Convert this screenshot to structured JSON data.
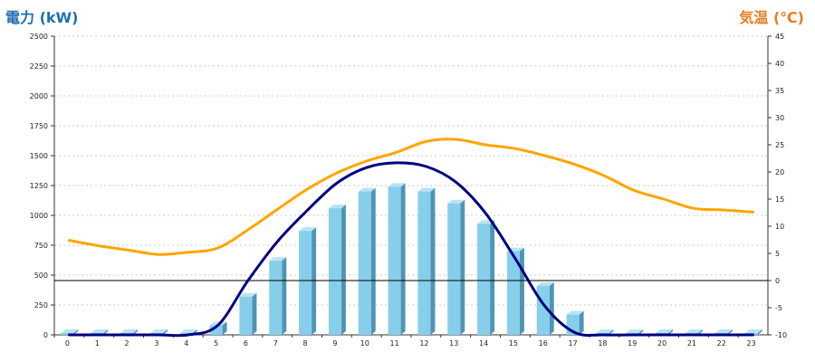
{
  "chart_data": {
    "type": "bar+line",
    "left_axis_label": "電力 (kW)",
    "right_axis_label": "気温 (℃)",
    "left_ylim": [
      0,
      2500
    ],
    "left_ticks": [
      "0",
      "250",
      "500",
      "750",
      "1000",
      "1250",
      "1500",
      "1750",
      "2000",
      "2250",
      "2500"
    ],
    "right_ylim": [
      -10,
      45
    ],
    "right_ticks": [
      "-10",
      "-5",
      "0",
      "5",
      "10",
      "15",
      "20",
      "25",
      "30",
      "35",
      "40",
      "45"
    ],
    "categories": [
      "0",
      "1",
      "2",
      "3",
      "4",
      "5",
      "6",
      "7",
      "8",
      "9",
      "10",
      "11",
      "12",
      "13",
      "14",
      "15",
      "16",
      "17",
      "18",
      "19",
      "20",
      "21",
      "22",
      "23"
    ],
    "grid": true,
    "series": [
      {
        "name": "",
        "kind": "bar",
        "axis": "left",
        "color": "#87CEEB",
        "values": [
          15,
          15,
          15,
          15,
          15,
          80,
          320,
          620,
          870,
          1060,
          1200,
          1240,
          1200,
          1100,
          930,
          700,
          410,
          170,
          15,
          15,
          15,
          15,
          15,
          15
        ]
      },
      {
        "name": "",
        "kind": "line",
        "axis": "left",
        "color": "#000080",
        "values": [
          0,
          0,
          0,
          0,
          0,
          80,
          450,
          780,
          1040,
          1270,
          1400,
          1440,
          1410,
          1280,
          1020,
          640,
          240,
          20,
          0,
          0,
          0,
          0,
          0,
          0
        ]
      },
      {
        "name": "",
        "kind": "line",
        "axis": "right",
        "color": "#FFA500",
        "values": [
          7.4,
          6.4,
          5.6,
          4.8,
          5.2,
          6,
          9.3,
          13.1,
          16.8,
          19.8,
          22,
          23.6,
          25.6,
          26,
          25,
          24.3,
          23,
          21.4,
          19.3,
          16.6,
          15,
          13.3,
          13,
          12.6
        ]
      }
    ],
    "zero_line_right": 0
  },
  "colors": {
    "left_label": "#1f6fb2",
    "right_label": "#e67e22",
    "bar_face": "#87CEEB",
    "bar_side": "#4f95b3",
    "bar_top": "#b9e3f4"
  }
}
